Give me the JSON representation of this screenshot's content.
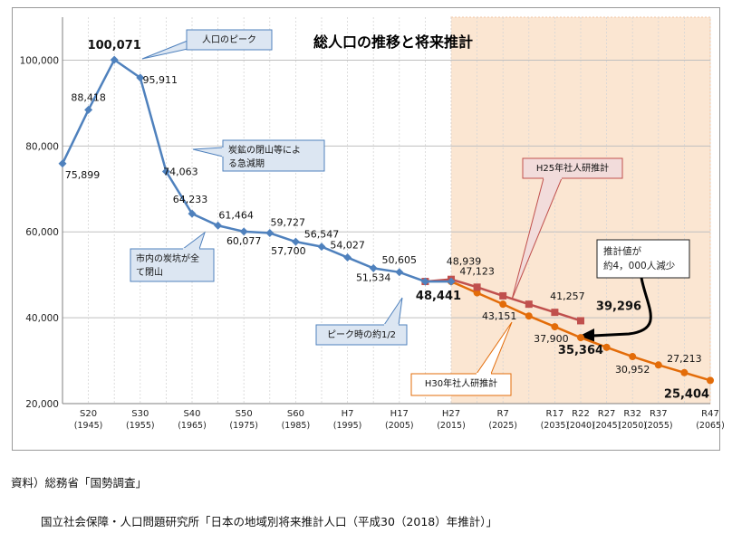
{
  "chart_data": {
    "type": "line",
    "title": "総人口の推移と将来推計",
    "xlabel": "",
    "ylabel": "",
    "ylim": [
      20000,
      110000
    ],
    "yticks": [
      "20,000",
      "40,000",
      "60,000",
      "80,000",
      "100,000"
    ],
    "ytick_values": [
      20000,
      40000,
      60000,
      80000,
      100000
    ],
    "xticks": [
      {
        "year": 1945,
        "era": "S20",
        "ad": "(1945)"
      },
      {
        "year": 1955,
        "era": "S30",
        "ad": "(1955)"
      },
      {
        "year": 1965,
        "era": "S40",
        "ad": "(1965)"
      },
      {
        "year": 1975,
        "era": "S50",
        "ad": "(1975)"
      },
      {
        "year": 1985,
        "era": "S60",
        "ad": "(1985)"
      },
      {
        "year": 1995,
        "era": "H7",
        "ad": "(1995)"
      },
      {
        "year": 2005,
        "era": "H17",
        "ad": "(2005)"
      },
      {
        "year": 2015,
        "era": "H27",
        "ad": "(2015)"
      },
      {
        "year": 2025,
        "era": "R7",
        "ad": "(2025)"
      },
      {
        "year": 2035,
        "era": "R17",
        "ad": "(2035)"
      },
      {
        "year": 2040,
        "era": "R22",
        "ad": "(2040)"
      },
      {
        "year": 2045,
        "era": "R27",
        "ad": "(2045)"
      },
      {
        "year": 2050,
        "era": "R32",
        "ad": "(2050)"
      },
      {
        "year": 2055,
        "era": "R37",
        "ad": "(2055)"
      },
      {
        "year": 2065,
        "era": "R47",
        "ad": "(2065)"
      }
    ],
    "projection_region_start": 2015,
    "series": [
      {
        "name": "国勢調査",
        "color": "#4f81bd",
        "marker": "diamond",
        "x": [
          1940,
          1945,
          1950,
          1955,
          1960,
          1965,
          1970,
          1975,
          1980,
          1985,
          1990,
          1995,
          2000,
          2005,
          2010,
          2015
        ],
        "values": [
          75899,
          88418,
          100071,
          95911,
          74063,
          64233,
          61464,
          60077,
          59727,
          57700,
          56547,
          54027,
          51534,
          50605,
          48441,
          48441
        ],
        "labels": [
          "75,899",
          "88,418",
          "100,071",
          "95,911",
          "74,063",
          "64,233",
          "61,464",
          "60,077",
          "59,727",
          "57,700",
          "56,547",
          "54,027",
          "51,534",
          "50,605",
          "",
          "48,441"
        ]
      },
      {
        "name": "H25年社人研推計",
        "color": "#c0504d",
        "marker": "square",
        "x": [
          2010,
          2015,
          2020,
          2025,
          2030,
          2035,
          2040
        ],
        "values": [
          48441,
          48939,
          47123,
          45100,
          43151,
          41257,
          39296
        ],
        "labels": [
          "",
          "48,939",
          "47,123",
          "",
          "",
          "41,257",
          "39,296"
        ]
      },
      {
        "name": "H30年社人研推計",
        "color": "#e36c09",
        "marker": "circle",
        "x": [
          2015,
          2020,
          2025,
          2030,
          2035,
          2040,
          2045,
          2050,
          2055,
          2060,
          2065
        ],
        "values": [
          48441,
          45800,
          43151,
          40400,
          37900,
          35364,
          33100,
          30952,
          29000,
          27213,
          25404
        ],
        "labels": [
          "",
          "",
          "43,151",
          "",
          "37,900",
          "35,364",
          "",
          "30,952",
          "",
          "27,213",
          "25,404"
        ]
      }
    ],
    "annotations": [
      {
        "text": "人口のピーク"
      },
      {
        "text": "炭鉱の閉山等による急減期"
      },
      {
        "text": "市内の炭坑が全て閉山"
      },
      {
        "text": "ピーク時の約1/2"
      },
      {
        "text": "H25年社人研推計"
      },
      {
        "text": "H30年社人研推計"
      },
      {
        "text": "推計値が約4，000人減少"
      }
    ]
  },
  "sources": {
    "line1": "資料）総務省「国勢調査」",
    "line2": "国立社会保障・人口問題研究所「日本の地域別将来推計人口（平成30（2018）年推計）」"
  }
}
